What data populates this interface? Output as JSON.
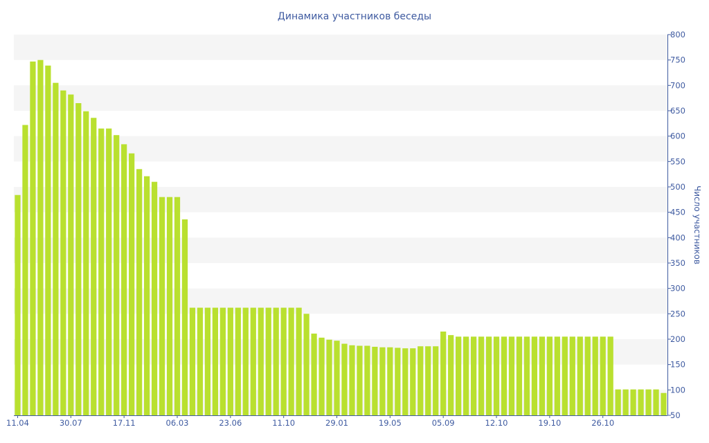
{
  "chart_data": {
    "type": "bar",
    "title": "Динамика участников беседы",
    "ylabel": "Число участников",
    "ylim": [
      50,
      800
    ],
    "y_ticks": [
      50,
      100,
      150,
      200,
      250,
      300,
      350,
      400,
      450,
      500,
      550,
      600,
      650,
      700,
      750,
      800
    ],
    "x_tick_labels": [
      "11.04",
      "30.07",
      "17.11",
      "06.03",
      "23.06",
      "11.10",
      "29.01",
      "19.05",
      "05.09",
      "12.10",
      "19.10",
      "26.10"
    ],
    "x_tick_positions": [
      0,
      7,
      14,
      21,
      28,
      35,
      42,
      49,
      56,
      63,
      70,
      77
    ],
    "values": [
      484,
      622,
      747,
      750,
      739,
      705,
      690,
      682,
      665,
      649,
      636,
      615,
      615,
      602,
      584,
      566,
      535,
      521,
      510,
      480,
      480,
      480,
      436,
      262,
      262,
      262,
      262,
      262,
      262,
      262,
      262,
      262,
      262,
      262,
      262,
      262,
      262,
      262,
      250,
      211,
      203,
      199,
      197,
      191,
      188,
      187,
      187,
      185,
      184,
      184,
      183,
      182,
      182,
      186,
      186,
      186,
      215,
      208,
      205,
      205,
      205,
      205,
      205,
      205,
      205,
      205,
      205,
      205,
      205,
      205,
      205,
      205,
      205,
      205,
      205,
      205,
      205,
      205,
      205,
      101,
      101,
      101,
      101,
      101,
      101,
      94
    ],
    "bar_color": "#b9e02f",
    "band_color": "#f5f5f5",
    "text_color": "#3e5aa0",
    "y_axis_position": "right",
    "grid": "alternating horizontal bands",
    "legend": "none"
  }
}
